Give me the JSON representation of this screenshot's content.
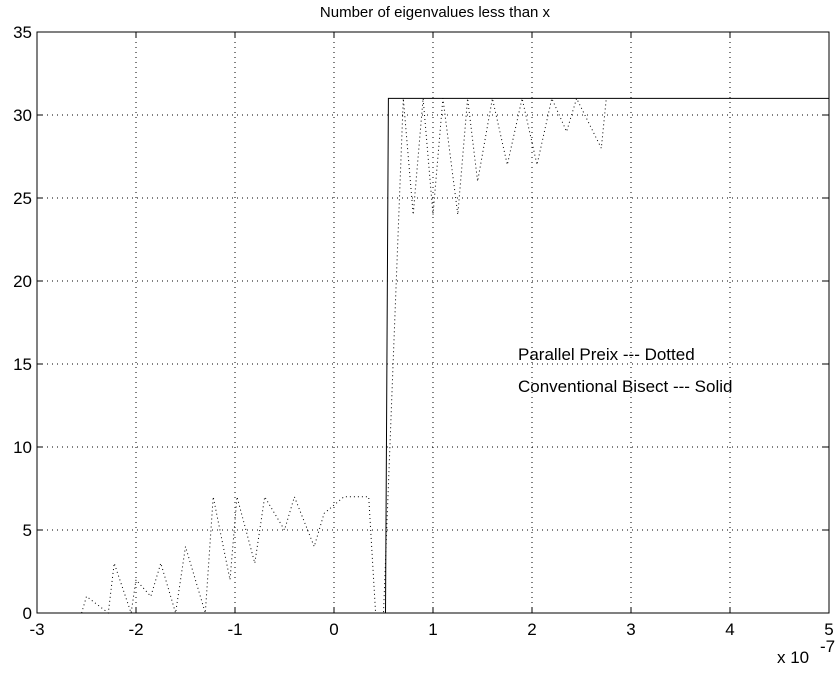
{
  "chart_data": {
    "type": "line",
    "title": "Number of eigenvalues less than x",
    "xlabel": "",
    "ylabel": "",
    "xlim": [
      -3,
      5
    ],
    "ylim": [
      0,
      35
    ],
    "x_ticks": [
      -3,
      -2,
      -1,
      0,
      1,
      2,
      3,
      4,
      5
    ],
    "x_tick_labels": [
      "-3",
      "-2",
      "-1",
      "0",
      "1",
      "2",
      "3",
      "4",
      "5"
    ],
    "y_ticks": [
      0,
      5,
      10,
      15,
      20,
      25,
      30,
      35
    ],
    "y_tick_labels": [
      "0",
      "5",
      "10",
      "15",
      "20",
      "25",
      "30",
      "35"
    ],
    "x_scale_base": "x 10",
    "x_scale_exponent": "-7",
    "grid": true,
    "annotations": [
      "Parallel Preix --- Dotted",
      "Conventional Bisect --- Solid"
    ],
    "series": [
      {
        "style": "solid",
        "x": [
          -3,
          0.52,
          0.55,
          5
        ],
        "y": [
          0,
          0,
          31,
          31
        ]
      },
      {
        "style": "dotted",
        "x": [
          -2.55,
          -2.5,
          -2.28,
          -2.22,
          -2.05,
          -2.0,
          -1.85,
          -1.75,
          -1.6,
          -1.5,
          -1.3,
          -1.22,
          -1.05,
          -0.98,
          -0.8,
          -0.7,
          -0.5,
          -0.4,
          -0.2,
          -0.1,
          0.1,
          0.18,
          0.35,
          0.42,
          0.5,
          0.7,
          0.8,
          0.9,
          1.0,
          1.1,
          1.25,
          1.35,
          1.45,
          1.6,
          1.75,
          1.9,
          2.05,
          2.2,
          2.35,
          2.45,
          2.7,
          2.75
        ],
        "y": [
          0,
          1,
          0,
          3,
          0,
          2,
          1,
          3,
          0,
          4,
          0,
          7,
          2,
          7,
          3,
          7,
          5,
          7,
          4,
          6,
          7,
          7,
          7,
          0,
          0,
          31,
          24,
          31,
          24,
          31,
          24,
          31,
          26,
          31,
          27,
          31,
          27,
          31,
          29,
          31,
          28,
          31
        ]
      }
    ]
  }
}
